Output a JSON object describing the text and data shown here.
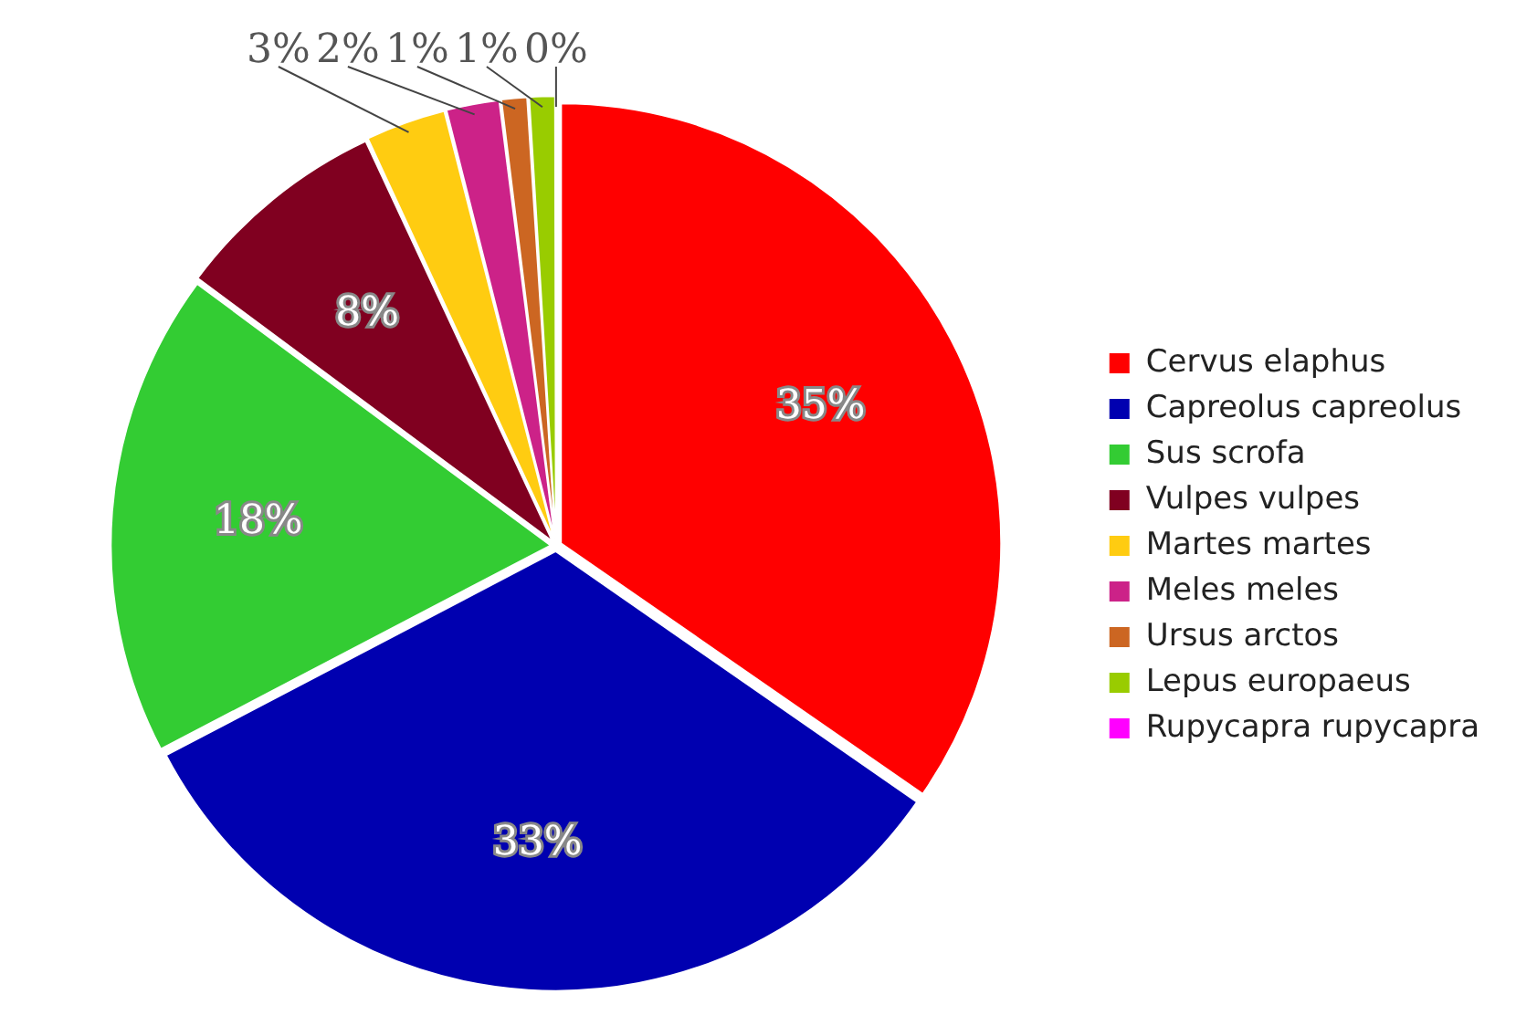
{
  "chart_data": {
    "type": "pie",
    "categories": [
      "Cervus elaphus",
      "Capreolus capreolus",
      "Sus scrofa",
      "Vulpes vulpes",
      "Martes martes",
      "Meles meles",
      "Ursus arctos",
      "Lepus europaeus",
      "Rupycapra rupycapra"
    ],
    "values": [
      35,
      33,
      18,
      8,
      3,
      2,
      1,
      1,
      0
    ],
    "value_labels": [
      "35%",
      "33%",
      "18%",
      "8%",
      "3%",
      "2%",
      "1%",
      "1%",
      "0%"
    ],
    "colors": [
      "#ff0000",
      "#0000b0",
      "#33cc33",
      "#800020",
      "#ffcc11",
      "#cc2288",
      "#cc6622",
      "#99cc00",
      "#ff00ff"
    ],
    "legend": "right"
  }
}
